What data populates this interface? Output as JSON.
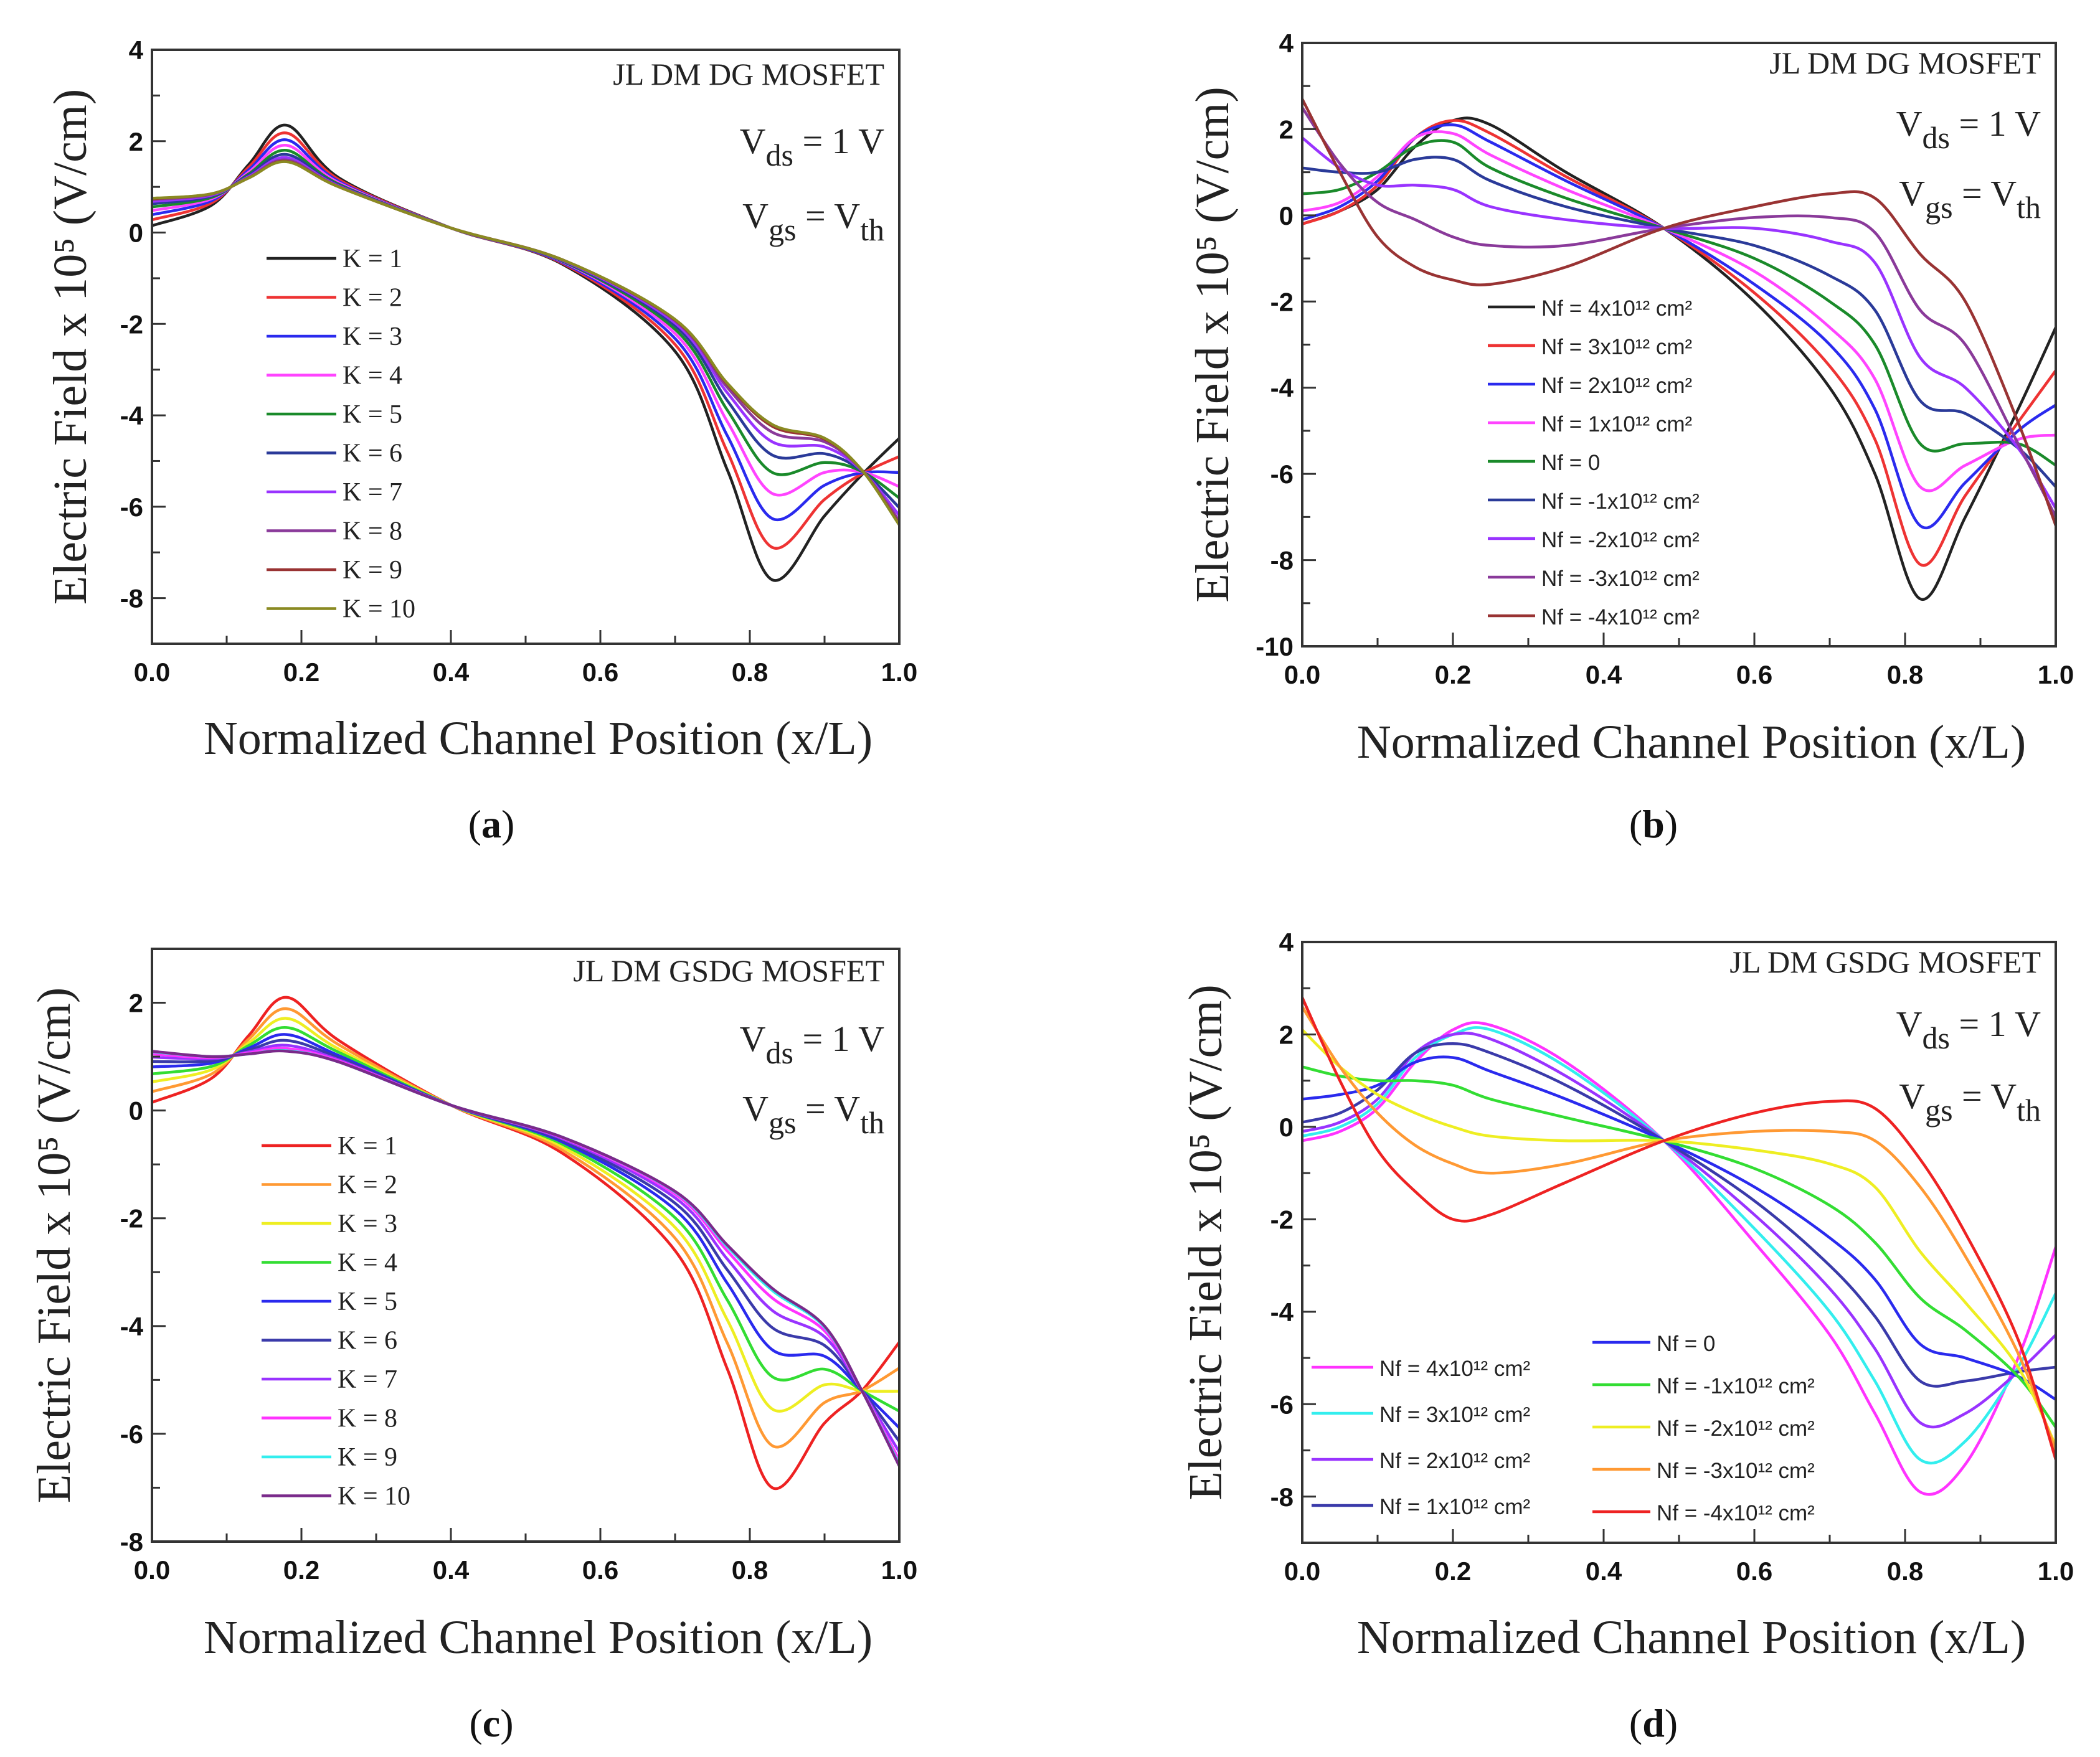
{
  "chart_data": [
    {
      "id": "a",
      "type": "line",
      "caption": "a",
      "title": "JL DM DG MOSFET",
      "vds": {
        "main": "V",
        "sub": "ds",
        "rest": " = 1 V"
      },
      "vgs": {
        "main": "V",
        "sub": "gs",
        "eq": " = V",
        "sub2": "th"
      },
      "xlabel": "Normalized Channel Position (x/L)",
      "ylabel": "Electric Field x 10⁵ (V/cm)",
      "xlim": [
        0,
        1
      ],
      "ylim": [
        -9,
        4
      ],
      "xticks": [
        "0.0",
        "0.2",
        "0.4",
        "0.6",
        "0.8",
        "1.0"
      ],
      "yticks": [
        "4",
        "2",
        "0",
        "-2",
        "-4",
        "-6",
        "-8"
      ],
      "x": [
        0,
        0.08,
        0.13,
        0.18,
        0.25,
        0.4,
        0.55,
        0.7,
        0.77,
        0.83,
        0.9,
        0.95,
        1.0
      ],
      "series": [
        {
          "name": "K = 1",
          "color": "#222222",
          "values": [
            0.15,
            0.6,
            1.5,
            2.35,
            1.2,
            0.1,
            -0.7,
            -2.6,
            -5.2,
            -7.6,
            -6.2,
            -5.3,
            -4.5
          ]
        },
        {
          "name": "K = 2",
          "color": "#ee3333",
          "values": [
            0.28,
            0.65,
            1.44,
            2.18,
            1.16,
            0.1,
            -0.68,
            -2.45,
            -4.8,
            -6.89,
            -5.84,
            -5.28,
            -4.9
          ]
        },
        {
          "name": "K = 3",
          "color": "#2a2aee",
          "values": [
            0.39,
            0.7,
            1.38,
            2.03,
            1.12,
            0.1,
            -0.66,
            -2.32,
            -4.45,
            -6.26,
            -5.53,
            -5.26,
            -5.25
          ]
        },
        {
          "name": "K = 4",
          "color": "#ff44ff",
          "values": [
            0.48,
            0.74,
            1.33,
            1.91,
            1.09,
            0.1,
            -0.64,
            -2.21,
            -4.14,
            -5.71,
            -5.25,
            -5.24,
            -5.56
          ]
        },
        {
          "name": "K = 5",
          "color": "#1a8a2a",
          "values": [
            0.56,
            0.77,
            1.29,
            1.8,
            1.06,
            0.1,
            -0.63,
            -2.12,
            -3.89,
            -5.25,
            -5.03,
            -5.23,
            -5.81
          ]
        },
        {
          "name": "K = 6",
          "color": "#2a3a99",
          "values": [
            0.63,
            0.8,
            1.26,
            1.71,
            1.04,
            0.1,
            -0.62,
            -2.04,
            -3.68,
            -4.87,
            -4.84,
            -5.22,
            -6.02
          ]
        },
        {
          "name": "K = 7",
          "color": "#9933ff",
          "values": [
            0.68,
            0.82,
            1.23,
            1.64,
            1.02,
            0.1,
            -0.61,
            -1.98,
            -3.51,
            -4.58,
            -4.69,
            -5.21,
            -6.19
          ]
        },
        {
          "name": "K = 8",
          "color": "#8a3a9a",
          "values": [
            0.72,
            0.84,
            1.21,
            1.59,
            1.01,
            0.1,
            -0.6,
            -1.93,
            -3.39,
            -4.37,
            -4.58,
            -5.2,
            -6.31
          ]
        },
        {
          "name": "K = 9",
          "color": "#993333",
          "values": [
            0.74,
            0.85,
            1.2,
            1.56,
            1.0,
            0.1,
            -0.6,
            -1.91,
            -3.32,
            -4.24,
            -4.52,
            -5.2,
            -6.38
          ]
        },
        {
          "name": "K = 10",
          "color": "#8a8a22",
          "values": [
            0.75,
            0.85,
            1.2,
            1.55,
            1.0,
            0.1,
            -0.6,
            -1.9,
            -3.3,
            -4.2,
            -4.5,
            -5.2,
            -6.4
          ]
        }
      ]
    },
    {
      "id": "b",
      "type": "line",
      "caption": "b",
      "title": "JL DM DG MOSFET",
      "vds": {
        "main": "V",
        "sub": "ds",
        "rest": " = 1 V"
      },
      "vgs": {
        "main": "V",
        "sub": "gs",
        "eq": " = V",
        "sub2": "th"
      },
      "xlabel": "Normalized Channel Position (x/L)",
      "ylabel": "Electric Field x 10⁵ (V/cm)",
      "xlim": [
        0,
        1
      ],
      "ylim": [
        -10,
        4
      ],
      "xticks": [
        "0.0",
        "0.2",
        "0.4",
        "0.6",
        "0.8",
        "1.0"
      ],
      "yticks": [
        "4",
        "2",
        "0",
        "-2",
        "-4",
        "-6",
        "-8",
        "-10"
      ],
      "x": [
        0,
        0.05,
        0.1,
        0.15,
        0.2,
        0.25,
        0.35,
        0.48,
        0.6,
        0.7,
        0.76,
        0.82,
        0.88,
        0.95,
        1.0
      ],
      "series": [
        {
          "name": "Nf = 4x10¹² cm²",
          "color": "#222222",
          "values": [
            -0.2,
            0.1,
            0.6,
            1.6,
            2.2,
            2.1,
            1.0,
            -0.3,
            -2.0,
            -4.0,
            -6.0,
            -8.9,
            -7.0,
            -4.5,
            -2.6
          ]
        },
        {
          "name": "Nf = 3x10¹² cm²",
          "color": "#ee3333",
          "values": [
            -0.2,
            0.1,
            0.7,
            1.8,
            2.2,
            1.9,
            0.9,
            -0.3,
            -1.8,
            -3.5,
            -5.2,
            -8.1,
            -6.5,
            -4.8,
            -3.6
          ]
        },
        {
          "name": "Nf = 2x10¹² cm²",
          "color": "#2a2aee",
          "values": [
            -0.1,
            0.2,
            0.8,
            1.8,
            2.1,
            1.7,
            0.8,
            -0.3,
            -1.6,
            -3.0,
            -4.5,
            -7.2,
            -6.2,
            -5.0,
            -4.4
          ]
        },
        {
          "name": "Nf = 1x10¹² cm²",
          "color": "#ff44ff",
          "values": [
            0.1,
            0.3,
            0.9,
            1.8,
            1.9,
            1.4,
            0.6,
            -0.3,
            -1.3,
            -2.6,
            -3.8,
            -6.3,
            -5.8,
            -5.2,
            -5.1
          ]
        },
        {
          "name": "Nf = 0",
          "color": "#1a8a2a",
          "values": [
            0.5,
            0.6,
            1.0,
            1.6,
            1.7,
            1.1,
            0.4,
            -0.3,
            -1.0,
            -2.0,
            -3.0,
            -5.3,
            -5.3,
            -5.3,
            -5.8
          ]
        },
        {
          "name": "Nf = -1x10¹² cm²",
          "color": "#2a3a99",
          "values": [
            1.1,
            1.0,
            1.0,
            1.3,
            1.3,
            0.8,
            0.2,
            -0.3,
            -0.7,
            -1.4,
            -2.2,
            -4.3,
            -4.6,
            -5.4,
            -6.3
          ]
        },
        {
          "name": "Nf = -2x10¹² cm²",
          "color": "#9933ff",
          "values": [
            1.8,
            1.1,
            0.7,
            0.7,
            0.6,
            0.2,
            -0.1,
            -0.3,
            -0.3,
            -0.6,
            -1.1,
            -3.3,
            -4.0,
            -5.4,
            -6.8
          ]
        },
        {
          "name": "Nf = -3x10¹² cm²",
          "color": "#8a3a9a",
          "values": [
            2.5,
            1.2,
            0.3,
            -0.1,
            -0.5,
            -0.7,
            -0.7,
            -0.3,
            -0.05,
            -0.05,
            -0.4,
            -2.2,
            -3.0,
            -5.3,
            -7.0
          ]
        },
        {
          "name": "Nf = -4x10¹² cm²",
          "color": "#993333",
          "values": [
            2.7,
            1.0,
            -0.5,
            -1.2,
            -1.5,
            -1.6,
            -1.2,
            -0.3,
            0.2,
            0.5,
            0.4,
            -0.9,
            -2.0,
            -4.8,
            -7.2
          ]
        }
      ]
    },
    {
      "id": "c",
      "type": "line",
      "caption": "c",
      "title": "JL DM GSDG MOSFET",
      "vds": {
        "main": "V",
        "sub": "ds",
        "rest": " = 1 V"
      },
      "vgs": {
        "main": "V",
        "sub": "gs",
        "eq": " = V",
        "sub2": "th"
      },
      "xlabel": "Normalized Channel Position (x/L)",
      "ylabel": "Electric Field x 10⁵ (V/cm)",
      "xlim": [
        0,
        1
      ],
      "ylim": [
        -8,
        3
      ],
      "xticks": [
        "0.0",
        "0.2",
        "0.4",
        "0.6",
        "0.8",
        "1.0"
      ],
      "yticks": [
        "2",
        "0",
        "-2",
        "-4",
        "-6",
        "-8"
      ],
      "x": [
        0,
        0.08,
        0.13,
        0.18,
        0.25,
        0.4,
        0.55,
        0.7,
        0.77,
        0.83,
        0.9,
        0.95,
        1.0
      ],
      "series": [
        {
          "name": "K = 1",
          "color": "#ee2222",
          "values": [
            0.15,
            0.6,
            1.4,
            2.1,
            1.3,
            0.1,
            -0.8,
            -2.6,
            -4.8,
            -7.0,
            -5.8,
            -5.2,
            -4.3
          ]
        },
        {
          "name": "K = 2",
          "color": "#ff9933",
          "values": [
            0.35,
            0.68,
            1.33,
            1.89,
            1.22,
            0.1,
            -0.74,
            -2.37,
            -4.32,
            -6.22,
            -5.42,
            -5.2,
            -4.78
          ]
        },
        {
          "name": "K = 3",
          "color": "#eeee22",
          "values": [
            0.53,
            0.76,
            1.26,
            1.71,
            1.14,
            0.1,
            -0.68,
            -2.17,
            -3.89,
            -5.54,
            -5.09,
            -5.2,
            -5.21
          ]
        },
        {
          "name": "K = 4",
          "color": "#33dd33",
          "values": [
            0.68,
            0.82,
            1.21,
            1.54,
            1.08,
            0.1,
            -0.63,
            -1.99,
            -3.52,
            -4.94,
            -4.8,
            -5.2,
            -5.58
          ]
        },
        {
          "name": "K = 5",
          "color": "#2a2aee",
          "values": [
            0.81,
            0.88,
            1.16,
            1.41,
            1.02,
            0.1,
            -0.59,
            -1.84,
            -3.21,
            -4.44,
            -4.56,
            -5.2,
            -5.89
          ]
        },
        {
          "name": "K = 6",
          "color": "#3a3aaa",
          "values": [
            0.91,
            0.92,
            1.12,
            1.3,
            0.98,
            0.1,
            -0.56,
            -1.72,
            -2.96,
            -4.03,
            -4.36,
            -5.2,
            -6.14
          ]
        },
        {
          "name": "K = 7",
          "color": "#9933ff",
          "values": [
            0.99,
            0.96,
            1.09,
            1.21,
            0.94,
            0.1,
            -0.53,
            -1.62,
            -2.76,
            -3.71,
            -4.2,
            -5.2,
            -6.34
          ]
        },
        {
          "name": "K = 8",
          "color": "#ff33ff",
          "values": [
            1.05,
            0.98,
            1.07,
            1.15,
            0.92,
            0.1,
            -0.51,
            -1.55,
            -2.61,
            -3.48,
            -4.09,
            -5.2,
            -6.49
          ]
        },
        {
          "name": "K = 9",
          "color": "#33eeee",
          "values": [
            1.09,
            1.0,
            1.05,
            1.11,
            0.9,
            0.1,
            -0.5,
            -1.51,
            -2.53,
            -3.34,
            -4.02,
            -5.2,
            -6.57
          ]
        },
        {
          "name": "K = 10",
          "color": "#7a2a8a",
          "values": [
            1.1,
            1.0,
            1.05,
            1.1,
            0.9,
            0.1,
            -0.5,
            -1.5,
            -2.5,
            -3.3,
            -4.0,
            -5.2,
            -6.6
          ]
        }
      ]
    },
    {
      "id": "d",
      "type": "line",
      "caption": "d",
      "title": "JL DM GSDG MOSFET",
      "vds": {
        "main": "V",
        "sub": "ds",
        "rest": " = 1 V"
      },
      "vgs": {
        "main": "V",
        "sub": "gs",
        "eq": " = V",
        "sub2": "th"
      },
      "xlabel": "Normalized Channel Position (x/L)",
      "ylabel": "Electric Field x 10⁵ (V/cm)",
      "xlim": [
        0,
        1
      ],
      "ylim": [
        -9,
        4
      ],
      "xticks": [
        "0.0",
        "0.2",
        "0.4",
        "0.6",
        "0.8",
        "1.0"
      ],
      "yticks": [
        "4",
        "2",
        "0",
        "-2",
        "-4",
        "-6",
        "-8"
      ],
      "x": [
        0,
        0.05,
        0.1,
        0.15,
        0.2,
        0.25,
        0.35,
        0.48,
        0.6,
        0.7,
        0.76,
        0.82,
        0.88,
        0.95,
        1.0
      ],
      "series": [
        {
          "name": "Nf = 4x10¹² cm²",
          "color": "#ff33ff",
          "values": [
            -0.3,
            -0.1,
            0.4,
            1.4,
            2.1,
            2.2,
            1.4,
            -0.3,
            -2.5,
            -4.5,
            -6.2,
            -7.9,
            -7.3,
            -5.0,
            -2.6
          ]
        },
        {
          "name": "Nf = 3x10¹² cm²",
          "color": "#33eeee",
          "values": [
            -0.2,
            0.0,
            0.5,
            1.5,
            2.0,
            2.1,
            1.3,
            -0.3,
            -2.2,
            -4.0,
            -5.5,
            -7.2,
            -6.8,
            -5.2,
            -3.6
          ]
        },
        {
          "name": "Nf = 2x10¹² cm²",
          "color": "#9933ff",
          "values": [
            -0.1,
            0.1,
            0.6,
            1.6,
            2.0,
            1.9,
            1.1,
            -0.3,
            -1.9,
            -3.5,
            -4.8,
            -6.4,
            -6.2,
            -5.3,
            -4.5
          ]
        },
        {
          "name": "Nf = 1x10¹² cm²",
          "color": "#3a3aaa",
          "values": [
            0.1,
            0.3,
            0.8,
            1.6,
            1.8,
            1.6,
            0.9,
            -0.3,
            -1.6,
            -3.0,
            -4.1,
            -5.5,
            -5.5,
            -5.3,
            -5.2
          ]
        },
        {
          "name": "Nf = 0",
          "color": "#2a2aee",
          "values": [
            0.6,
            0.7,
            0.9,
            1.4,
            1.5,
            1.2,
            0.6,
            -0.3,
            -1.3,
            -2.4,
            -3.3,
            -4.7,
            -5.0,
            -5.4,
            -5.9
          ]
        },
        {
          "name": "Nf = -1x10¹² cm²",
          "color": "#33dd33",
          "values": [
            1.3,
            1.1,
            1.0,
            1.0,
            0.9,
            0.6,
            0.2,
            -0.3,
            -0.9,
            -1.7,
            -2.5,
            -3.7,
            -4.4,
            -5.4,
            -6.5
          ]
        },
        {
          "name": "Nf = -2x10¹² cm²",
          "color": "#eeee22",
          "values": [
            2.1,
            1.3,
            0.7,
            0.3,
            0.0,
            -0.2,
            -0.3,
            -0.3,
            -0.5,
            -0.8,
            -1.3,
            -2.7,
            -3.8,
            -5.2,
            -6.9
          ]
        },
        {
          "name": "Nf = -3x10¹² cm²",
          "color": "#ff9933",
          "values": [
            2.6,
            1.3,
            0.3,
            -0.4,
            -0.8,
            -1.0,
            -0.8,
            -0.3,
            -0.1,
            -0.1,
            -0.3,
            -1.3,
            -2.8,
            -4.9,
            -7.0
          ]
        },
        {
          "name": "Nf = -4x10¹² cm²",
          "color": "#ee2222",
          "values": [
            2.8,
            1.0,
            -0.5,
            -1.4,
            -2.0,
            -1.9,
            -1.2,
            -0.3,
            0.3,
            0.55,
            0.4,
            -0.7,
            -2.3,
            -4.6,
            -7.2
          ]
        }
      ]
    }
  ]
}
